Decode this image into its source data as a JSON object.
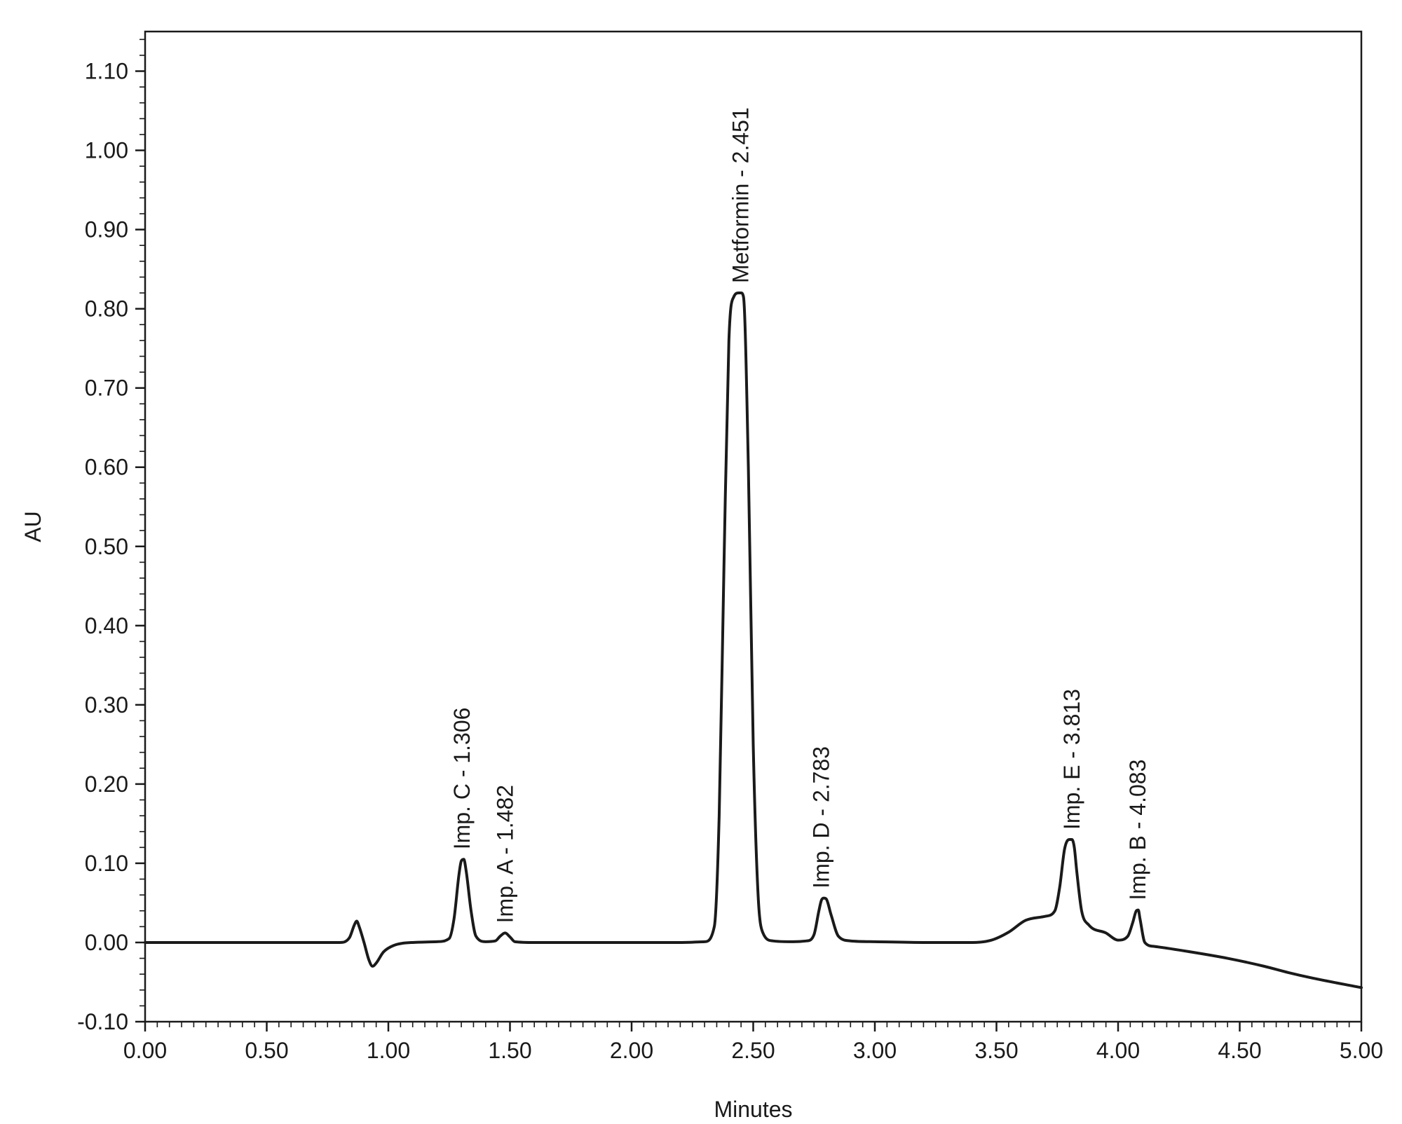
{
  "chart_data": {
    "type": "line",
    "xlabel": "Minutes",
    "ylabel": "AU",
    "xlim": [
      0,
      5
    ],
    "ylim": [
      -0.1,
      1.15
    ],
    "x_ticks": [
      0.0,
      0.5,
      1.0,
      1.5,
      2.0,
      2.5,
      3.0,
      3.5,
      4.0,
      4.5,
      5.0
    ],
    "x_tick_labels": [
      "0.00",
      "0.50",
      "1.00",
      "1.50",
      "2.00",
      "2.50",
      "3.00",
      "3.50",
      "4.00",
      "4.50",
      "5.00"
    ],
    "y_ticks": [
      -0.1,
      0.0,
      0.1,
      0.2,
      0.3,
      0.4,
      0.5,
      0.6,
      0.7,
      0.8,
      0.9,
      1.0,
      1.1
    ],
    "y_tick_labels": [
      "-0.10",
      "0.00",
      "0.10",
      "0.20",
      "0.30",
      "0.40",
      "0.50",
      "0.60",
      "0.70",
      "0.80",
      "0.90",
      "1.00",
      "1.10"
    ],
    "grid": false,
    "line_color": "#1a1a1a",
    "series": [
      {
        "x": [
          0.0,
          0.2,
          0.4,
          0.6,
          0.8,
          0.84,
          0.86,
          0.87,
          0.88,
          0.9,
          0.92,
          0.935,
          0.95,
          0.98,
          1.02,
          1.1,
          1.2,
          1.25,
          1.27,
          1.29,
          1.3,
          1.31,
          1.32,
          1.34,
          1.36,
          1.4,
          1.44,
          1.46,
          1.48,
          1.5,
          1.52,
          1.6,
          1.8,
          2.0,
          2.2,
          2.3,
          2.34,
          2.36,
          2.38,
          2.4,
          2.42,
          2.44,
          2.45,
          2.46,
          2.48,
          2.5,
          2.52,
          2.54,
          2.58,
          2.65,
          2.72,
          2.75,
          2.77,
          2.78,
          2.79,
          2.8,
          2.82,
          2.85,
          2.9,
          3.0,
          3.2,
          3.4,
          3.48,
          3.55,
          3.62,
          3.7,
          3.74,
          3.76,
          3.78,
          3.8,
          3.81,
          3.82,
          3.83,
          3.85,
          3.88,
          3.95,
          4.0,
          4.04,
          4.06,
          4.075,
          4.083,
          4.09,
          4.11,
          4.15,
          4.3,
          4.45,
          4.6,
          4.7,
          4.8,
          5.0
        ],
        "y": [
          0.0,
          0.0,
          0.0,
          0.0,
          0.0,
          0.006,
          0.022,
          0.027,
          0.02,
          0.0,
          -0.022,
          -0.03,
          -0.026,
          -0.012,
          -0.004,
          0.0,
          0.001,
          0.005,
          0.03,
          0.085,
          0.103,
          0.105,
          0.09,
          0.04,
          0.008,
          0.001,
          0.002,
          0.008,
          0.012,
          0.007,
          0.001,
          0.0,
          0.0,
          0.0,
          0.0,
          0.001,
          0.02,
          0.16,
          0.48,
          0.76,
          0.815,
          0.82,
          0.82,
          0.815,
          0.6,
          0.25,
          0.06,
          0.012,
          0.002,
          0.001,
          0.002,
          0.01,
          0.04,
          0.053,
          0.056,
          0.055,
          0.035,
          0.008,
          0.002,
          0.001,
          0.0,
          0.0,
          0.003,
          0.013,
          0.028,
          0.033,
          0.04,
          0.07,
          0.118,
          0.13,
          0.13,
          0.12,
          0.09,
          0.04,
          0.022,
          0.012,
          0.003,
          0.008,
          0.025,
          0.04,
          0.041,
          0.03,
          0.0,
          -0.005,
          -0.012,
          -0.02,
          -0.03,
          -0.038,
          -0.045,
          -0.057
        ]
      }
    ],
    "annotations": [
      {
        "text": "Imp. C - 1.306",
        "x": 1.306,
        "y": 0.105
      },
      {
        "text": "Imp. A - 1.482",
        "x": 1.482,
        "y": 0.012
      },
      {
        "text": "Metformin - 2.451",
        "x": 2.451,
        "y": 0.82
      },
      {
        "text": "Imp. D - 2.783",
        "x": 2.783,
        "y": 0.056
      },
      {
        "text": "Imp. E - 3.813",
        "x": 3.813,
        "y": 0.13
      },
      {
        "text": "Imp. B - 4.083",
        "x": 4.083,
        "y": 0.041
      }
    ]
  }
}
